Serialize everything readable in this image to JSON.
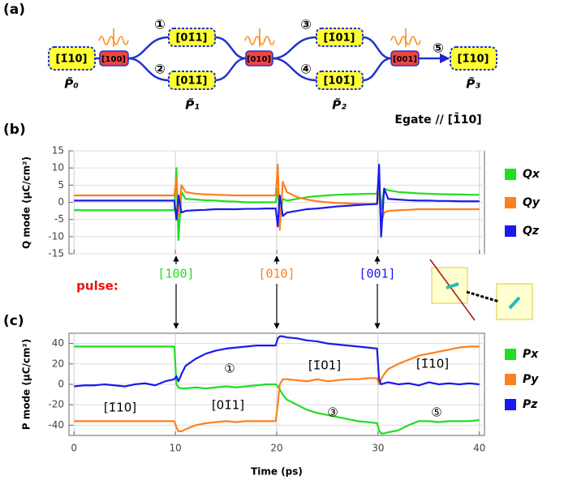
{
  "panel_labels": [
    "(a)",
    "(b)",
    "(c)"
  ],
  "diagram": {
    "nodes": [
      "[1̄10]",
      "[100]",
      "[01̄1]",
      "[011̄]",
      "[010]",
      "[1̄01]",
      "[101̄]",
      "[001]",
      "[1̄10]"
    ],
    "path_numbers": [
      "①",
      "②",
      "③",
      "④",
      "⑤"
    ],
    "state_labels": [
      "P̃₀",
      "P̃₁",
      "P̃₂",
      "P̃₃"
    ],
    "field_label": "Egate // [1̄10]"
  },
  "pulse_annotation": {
    "label": "pulse:",
    "directions": [
      "[100]",
      "[010]",
      "[001]"
    ]
  },
  "chart_data": [
    {
      "type": "line",
      "ylabel": "Q mode (μC/cm²)",
      "x": [
        0,
        1,
        2,
        3,
        4,
        5,
        6,
        7,
        8,
        9,
        9.9,
        10.1,
        10.3,
        10.6,
        11,
        12,
        13,
        14,
        15,
        16,
        17,
        18,
        19,
        19.9,
        20.1,
        20.3,
        20.6,
        21,
        22,
        23,
        24,
        25,
        26,
        27,
        28,
        29,
        29.9,
        30.1,
        30.3,
        30.6,
        31,
        32,
        33,
        34,
        35,
        36,
        37,
        38,
        39,
        40
      ],
      "xlim": [
        -0.5,
        40.5
      ],
      "xticks": [
        0,
        10,
        20,
        30,
        40
      ],
      "xtick_labels": false,
      "ylim": [
        -15,
        15
      ],
      "yticks": [
        -15,
        -10,
        -5,
        0,
        5,
        10,
        15
      ],
      "grid": true,
      "series": [
        {
          "name": "Qx",
          "color": "#22dd22",
          "values": [
            -2.3,
            -2.3,
            -2.3,
            -2.3,
            -2.3,
            -2.3,
            -2.3,
            -2.3,
            -2.3,
            -2.3,
            -2.3,
            10,
            -11,
            3,
            1,
            0.8,
            0.6,
            0.5,
            0.3,
            0.2,
            0,
            0,
            0,
            0,
            4,
            -5,
            1,
            0.5,
            1,
            1.5,
            1.8,
            2,
            2.2,
            2.3,
            2.4,
            2.5,
            2.5,
            7,
            -2,
            4,
            3.5,
            3,
            2.8,
            2.6,
            2.5,
            2.4,
            2.3,
            2.3,
            2.2,
            2.2
          ]
        },
        {
          "name": "Qy",
          "color": "#ff7f1e",
          "values": [
            2,
            2,
            2,
            2,
            2,
            2,
            2,
            2,
            2,
            2,
            2,
            7,
            -4,
            5,
            3,
            2.5,
            2.3,
            2.2,
            2.1,
            2,
            2,
            2,
            2,
            2,
            11,
            -8,
            6,
            3,
            1.5,
            0.8,
            0.3,
            0,
            -0.2,
            -0.3,
            -0.4,
            -0.5,
            -0.5,
            3,
            -6,
            -3,
            -2.5,
            -2.3,
            -2.2,
            -2,
            -2,
            -2,
            -2,
            -2,
            -2,
            -2
          ]
        },
        {
          "name": "Qz",
          "color": "#1a1aee",
          "values": [
            0.5,
            0.5,
            0.5,
            0.5,
            0.5,
            0.5,
            0.5,
            0.5,
            0.5,
            0.5,
            0.5,
            -5,
            2,
            -3,
            -2.5,
            -2.3,
            -2.2,
            -2,
            -2,
            -2,
            -1.9,
            -1.9,
            -1.8,
            -1.8,
            -7,
            2,
            -4,
            -3,
            -2.5,
            -2,
            -1.8,
            -1.5,
            -1.2,
            -1,
            -0.8,
            -0.6,
            -0.5,
            11,
            -10,
            4,
            1,
            0.8,
            0.6,
            0.5,
            0.5,
            0.4,
            0.4,
            0.3,
            0.3,
            0.3
          ]
        }
      ]
    },
    {
      "type": "line",
      "ylabel": "P mode (μC/cm²)",
      "xlabel": "Time (ps)",
      "x": [
        0,
        1,
        2,
        3,
        4,
        5,
        6,
        7,
        8,
        9,
        9.9,
        10.1,
        10.3,
        10.6,
        11,
        12,
        13,
        14,
        15,
        16,
        17,
        18,
        19,
        19.9,
        20.1,
        20.3,
        20.6,
        21,
        22,
        23,
        24,
        25,
        26,
        27,
        28,
        29,
        29.9,
        30.1,
        30.3,
        30.6,
        31,
        32,
        33,
        34,
        35,
        36,
        37,
        38,
        39,
        40
      ],
      "xlim": [
        -0.5,
        40.5
      ],
      "xticks": [
        0,
        10,
        20,
        30,
        40
      ],
      "xtick_labels": true,
      "ylim": [
        -50,
        50
      ],
      "yticks": [
        -40,
        -20,
        0,
        20,
        40
      ],
      "grid": true,
      "annotations": [
        "①",
        "③",
        "⑤",
        "[1̄10]",
        "[01̄1]",
        "[1̄01]",
        "[1̄10]"
      ],
      "series": [
        {
          "name": "Px",
          "color": "#22dd22",
          "values": [
            37,
            37,
            37,
            37,
            37,
            37,
            37,
            37,
            37,
            37,
            37,
            0,
            -3,
            -4,
            -4,
            -3,
            -4,
            -3,
            -2,
            -3,
            -2,
            -1,
            0,
            0,
            -2,
            -5,
            -10,
            -15,
            -20,
            -25,
            -28,
            -30,
            -32,
            -34,
            -36,
            -37,
            -38,
            -45,
            -48,
            -48,
            -47,
            -45,
            -40,
            -36,
            -36,
            -37,
            -36,
            -36,
            -36,
            -35
          ]
        },
        {
          "name": "Py",
          "color": "#ff7f1e",
          "values": [
            -36,
            -36,
            -36,
            -36,
            -36,
            -36,
            -36,
            -36,
            -36,
            -36,
            -36,
            -42,
            -46,
            -46,
            -44,
            -40,
            -38,
            -37,
            -36,
            -37,
            -36,
            -36,
            -36,
            -36,
            -20,
            0,
            5,
            5,
            4,
            3,
            5,
            3,
            4,
            5,
            5,
            6,
            6,
            0,
            5,
            10,
            15,
            20,
            24,
            28,
            30,
            32,
            34,
            36,
            37,
            37
          ]
        },
        {
          "name": "Pz",
          "color": "#1a1aee",
          "values": [
            -2,
            -1,
            -1,
            0,
            -1,
            -2,
            0,
            1,
            -1,
            3,
            5,
            8,
            3,
            10,
            18,
            25,
            30,
            33,
            35,
            36,
            37,
            38,
            38,
            38,
            45,
            47,
            47,
            46,
            45,
            43,
            42,
            40,
            39,
            38,
            37,
            36,
            35,
            5,
            0,
            1,
            2,
            0,
            1,
            -1,
            2,
            0,
            1,
            0,
            1,
            0
          ]
        }
      ]
    }
  ]
}
